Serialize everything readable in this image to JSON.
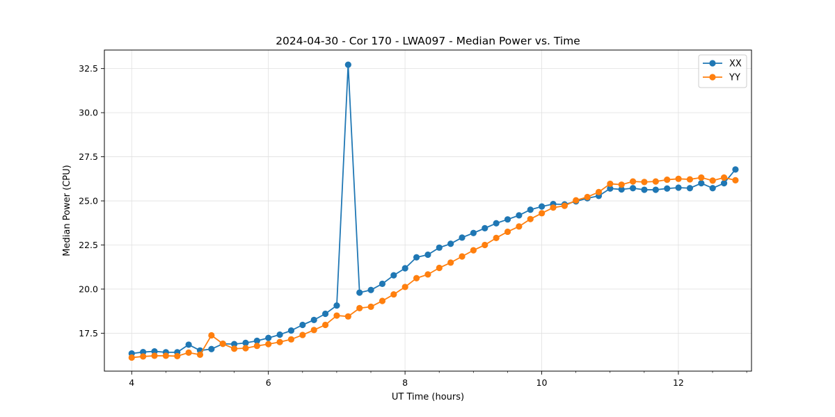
{
  "chart_data": {
    "type": "line",
    "title": "2024-04-30 - Cor 170 - LWA097 - Median Power vs. Time",
    "xlabel": "UT Time (hours)",
    "ylabel": "Median Power (CPU)",
    "xlim": [
      3.6,
      13.07
    ],
    "ylim": [
      15.35,
      33.55
    ],
    "xticks": [
      4,
      6,
      8,
      10,
      12
    ],
    "xtick_labels": [
      "4",
      "6",
      "8",
      "10",
      "12"
    ],
    "xminor_step": 0.5,
    "yticks": [
      17.5,
      20.0,
      22.5,
      25.0,
      27.5,
      30.0,
      32.5
    ],
    "ytick_labels": [
      "17.5",
      "20.0",
      "22.5",
      "25.0",
      "27.5",
      "30.0",
      "32.5"
    ],
    "grid": true,
    "legend_position": "top-right",
    "x_start": 4.0,
    "x_step": 0.1667,
    "series": [
      {
        "name": "XX",
        "color": "#1f77b4",
        "values": [
          16.35,
          16.43,
          16.47,
          16.42,
          16.42,
          16.85,
          16.52,
          16.6,
          16.9,
          16.88,
          16.95,
          17.07,
          17.23,
          17.42,
          17.65,
          17.97,
          18.25,
          18.6,
          19.07,
          32.72,
          19.8,
          19.95,
          20.3,
          20.78,
          21.18,
          21.8,
          21.95,
          22.35,
          22.57,
          22.92,
          23.18,
          23.45,
          23.73,
          23.95,
          24.18,
          24.5,
          24.68,
          24.82,
          24.8,
          24.97,
          25.15,
          25.28,
          25.7,
          25.65,
          25.72,
          25.63,
          25.63,
          25.7,
          25.75,
          25.72,
          26.0,
          25.72,
          26.0,
          26.78
        ]
      },
      {
        "name": "YY",
        "color": "#ff7f0e",
        "values": [
          16.12,
          16.18,
          16.22,
          16.22,
          16.2,
          16.4,
          16.28,
          17.38,
          16.9,
          16.62,
          16.65,
          16.78,
          16.88,
          17.0,
          17.15,
          17.4,
          17.68,
          17.97,
          18.5,
          18.45,
          18.92,
          19.0,
          19.33,
          19.7,
          20.12,
          20.62,
          20.83,
          21.2,
          21.5,
          21.85,
          22.2,
          22.5,
          22.9,
          23.25,
          23.55,
          23.97,
          24.3,
          24.62,
          24.72,
          25.03,
          25.22,
          25.5,
          25.97,
          25.92,
          26.1,
          26.07,
          26.1,
          26.2,
          26.25,
          26.22,
          26.32,
          26.15,
          26.32,
          26.17
        ]
      }
    ]
  }
}
